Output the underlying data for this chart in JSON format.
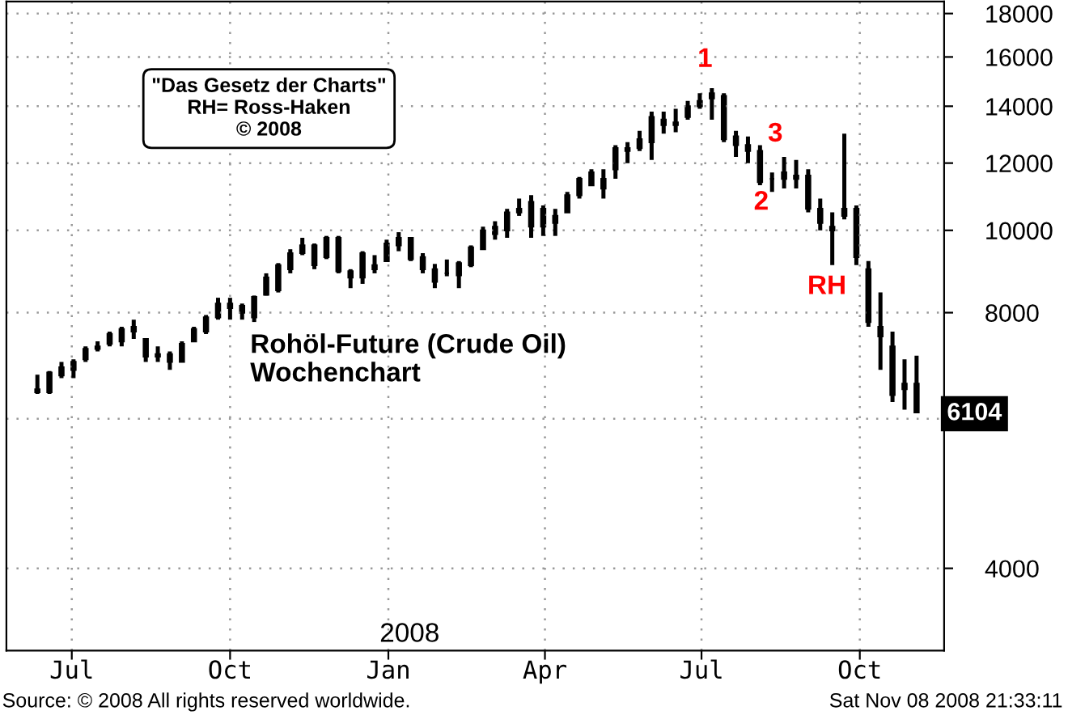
{
  "chart_data": {
    "type": "candlestick",
    "title": "Rohöl-Future (Crude Oil)",
    "subtitle": "Wochenchart",
    "x": [
      "2007-06-11",
      "2007-06-18",
      "2007-06-25",
      "2007-07-02",
      "2007-07-09",
      "2007-07-16",
      "2007-07-23",
      "2007-07-30",
      "2007-08-06",
      "2007-08-13",
      "2007-08-20",
      "2007-08-27",
      "2007-09-03",
      "2007-09-10",
      "2007-09-17",
      "2007-09-24",
      "2007-10-01",
      "2007-10-08",
      "2007-10-15",
      "2007-10-22",
      "2007-10-29",
      "2007-11-05",
      "2007-11-12",
      "2007-11-19",
      "2007-11-26",
      "2007-12-03",
      "2007-12-10",
      "2007-12-17",
      "2007-12-24",
      "2007-12-31",
      "2008-01-07",
      "2008-01-14",
      "2008-01-21",
      "2008-01-28",
      "2008-02-04",
      "2008-02-11",
      "2008-02-18",
      "2008-02-25",
      "2008-03-03",
      "2008-03-10",
      "2008-03-17",
      "2008-03-24",
      "2008-03-31",
      "2008-04-07",
      "2008-04-14",
      "2008-04-21",
      "2008-04-28",
      "2008-05-05",
      "2008-05-12",
      "2008-05-19",
      "2008-05-26",
      "2008-06-02",
      "2008-06-09",
      "2008-06-16",
      "2008-06-23",
      "2008-06-30",
      "2008-07-07",
      "2008-07-14",
      "2008-07-21",
      "2008-07-28",
      "2008-08-04",
      "2008-08-11",
      "2008-08-18",
      "2008-08-25",
      "2008-09-01",
      "2008-09-08",
      "2008-09-15",
      "2008-09-22",
      "2008-09-29",
      "2008-10-06",
      "2008-10-13",
      "2008-10-20",
      "2008-10-27",
      "2008-11-03"
    ],
    "ohlc": [
      [
        6500,
        6760,
        6420,
        6450
      ],
      [
        6450,
        6830,
        6420,
        6800
      ],
      [
        6750,
        7000,
        6700,
        6900
      ],
      [
        6850,
        7050,
        6700,
        7000
      ],
      [
        7050,
        7300,
        7000,
        7250
      ],
      [
        7250,
        7400,
        7200,
        7300
      ],
      [
        7350,
        7600,
        7300,
        7550
      ],
      [
        7400,
        7700,
        7300,
        7650
      ],
      [
        7600,
        7850,
        7450,
        7700
      ],
      [
        7450,
        7450,
        7000,
        7100
      ],
      [
        7100,
        7300,
        7000,
        7150
      ],
      [
        7150,
        7200,
        6850,
        7000
      ],
      [
        7000,
        7400,
        7000,
        7350
      ],
      [
        7400,
        7700,
        7400,
        7650
      ],
      [
        7600,
        7950,
        7550,
        7900
      ],
      [
        7900,
        8330,
        7850,
        8200
      ],
      [
        8200,
        8330,
        7850,
        8100
      ],
      [
        8000,
        8200,
        7850,
        8150
      ],
      [
        7900,
        8380,
        7800,
        8350
      ],
      [
        8400,
        8900,
        8380,
        8800
      ],
      [
        8500,
        9150,
        8450,
        9100
      ],
      [
        9000,
        9500,
        8900,
        9400
      ],
      [
        9400,
        9800,
        9350,
        9600
      ],
      [
        9600,
        9650,
        9000,
        9100
      ],
      [
        9300,
        9850,
        9250,
        9800
      ],
      [
        9800,
        9850,
        8900,
        8950
      ],
      [
        8950,
        9000,
        8550,
        8800
      ],
      [
        8800,
        9450,
        8650,
        9400
      ],
      [
        9000,
        9350,
        8900,
        9100
      ],
      [
        9200,
        9750,
        9200,
        9650
      ],
      [
        9600,
        9950,
        9450,
        9800
      ],
      [
        9800,
        9800,
        9200,
        9250
      ],
      [
        9300,
        9400,
        8900,
        9000
      ],
      [
        9000,
        9130,
        8550,
        8700
      ],
      [
        8900,
        9240,
        8830,
        8900
      ],
      [
        9150,
        9200,
        8550,
        8850
      ],
      [
        9100,
        9600,
        9050,
        9550
      ],
      [
        9500,
        10100,
        9500,
        10000
      ],
      [
        9900,
        10250,
        9750,
        10100
      ],
      [
        10000,
        10600,
        9800,
        10500
      ],
      [
        10500,
        10900,
        10400,
        10600
      ],
      [
        10800,
        11000,
        9800,
        10100
      ],
      [
        10100,
        10700,
        9850,
        10600
      ],
      [
        10200,
        10600,
        9850,
        10400
      ],
      [
        10500,
        11100,
        10500,
        11000
      ],
      [
        11000,
        11560,
        10900,
        11500
      ],
      [
        11300,
        11800,
        11300,
        11700
      ],
      [
        11500,
        11800,
        10900,
        11200
      ],
      [
        11800,
        12600,
        11500,
        12500
      ],
      [
        12400,
        12700,
        12000,
        12500
      ],
      [
        12500,
        13100,
        12400,
        12800
      ],
      [
        12700,
        13800,
        12100,
        13600
      ],
      [
        13500,
        13800,
        13000,
        13300
      ],
      [
        13300,
        13900,
        13050,
        13400
      ],
      [
        13600,
        14200,
        13500,
        14000
      ],
      [
        14000,
        14500,
        13900,
        14200
      ],
      [
        14500,
        14700,
        13500,
        14300
      ],
      [
        14400,
        14500,
        12700,
        12800
      ],
      [
        12900,
        13100,
        12200,
        12600
      ],
      [
        12600,
        12900,
        12000,
        12400
      ],
      [
        12400,
        12600,
        11300,
        11400
      ],
      [
        11500,
        11700,
        11100,
        11500
      ],
      [
        11500,
        12200,
        11200,
        11700
      ],
      [
        11600,
        12100,
        11200,
        11500
      ],
      [
        11600,
        11800,
        10500,
        10600
      ],
      [
        10600,
        10900,
        10000,
        10200
      ],
      [
        10100,
        10500,
        9100,
        10000
      ],
      [
        10400,
        13000,
        10300,
        10600
      ],
      [
        10600,
        10700,
        9100,
        9300
      ],
      [
        9000,
        9200,
        7700,
        7800
      ],
      [
        7700,
        8450,
        6850,
        7500
      ],
      [
        7300,
        7600,
        6280,
        6400
      ],
      [
        6600,
        7050,
        6150,
        6500
      ],
      [
        6600,
        7120,
        6100,
        6104
      ]
    ],
    "log": true,
    "xlim": [
      "2007-05-24",
      "2008-11-19"
    ],
    "ylim": [
      3200,
      18600
    ],
    "xticks": [
      {
        "value": "2007-07-01",
        "label": "Jul"
      },
      {
        "value": "2007-10-01",
        "label": "Oct"
      },
      {
        "value": "2008-01-01",
        "label": "Jan"
      },
      {
        "value": "2008-04-01",
        "label": "Apr"
      },
      {
        "value": "2008-07-01",
        "label": "Jul"
      },
      {
        "value": "2008-10-01",
        "label": "Oct"
      }
    ],
    "yticks": [
      4000,
      {
        "value": 6000,
        "label": null
      },
      8000,
      10000,
      12000,
      14000,
      16000,
      18000
    ],
    "grid": true,
    "annotations": [
      "1",
      "2",
      "3",
      "RH",
      "6104",
      "\"Das Gesetz der Charts\"\nRH= Ross-Haken\n© 2008",
      "2008",
      "Source: © 2008 All rights reserved worldwide.",
      "Sat Nov 08 2008 21:33:11"
    ]
  }
}
